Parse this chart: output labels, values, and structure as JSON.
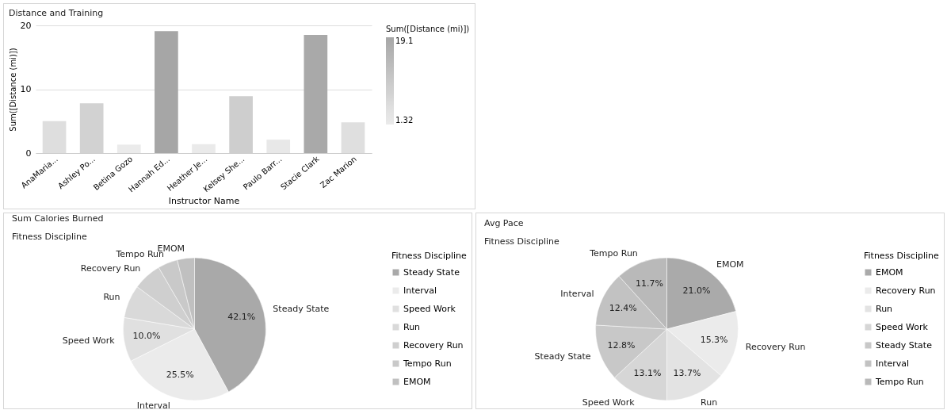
{
  "chart_data": [
    {
      "type": "bar",
      "title": "Distance and Training",
      "xlabel": "Instructor Name",
      "ylabel": "Sum([Distance (mi)])",
      "clabel": "Sum([Distance (mi)])",
      "categories": [
        "AnaMaria...",
        "Ashley Po...",
        "Betina Gozo",
        "Hannah Ed...",
        "Heather Je...",
        "Kelsey She...",
        "Paulo Barr...",
        "Stacie Clark",
        "Zac Marion"
      ],
      "values": [
        5.0,
        7.8,
        1.32,
        19.1,
        1.4,
        8.9,
        2.1,
        18.5,
        4.8
      ],
      "colors": [
        "#dedede",
        "#d2d2d2",
        "#ebebeb",
        "#a6a6a6",
        "#eaeaea",
        "#cecece",
        "#e8e8e8",
        "#a9a9a9",
        "#dfdfdf"
      ],
      "ylim": [
        0,
        20
      ],
      "yticks": [
        0,
        10,
        20
      ],
      "grid": "y",
      "clim": [
        1.32,
        19.1
      ],
      "cticks": [
        1.32,
        19.1
      ]
    },
    {
      "type": "pie",
      "title": "Sum Calories Burned",
      "subtitle": "Fitness Discipline",
      "legend_title": "Fitness Discipline",
      "legend": "right",
      "categories": [
        "Steady State",
        "Interval",
        "Speed Work",
        "Run",
        "Recovery  Run",
        "Tempo Run",
        "EMOM"
      ],
      "values": [
        42.1,
        25.5,
        10.0,
        7.5,
        6.5,
        4.5,
        3.9
      ],
      "value_labels": [
        "42.1%",
        "25.5%",
        "10.0%",
        null,
        null,
        null,
        null
      ],
      "colors": [
        "#a9a9a9",
        "#ebebeb",
        "#e0e0e0",
        "#d9d9d9",
        "#cfcfcf",
        "#c9c9c9",
        "#c0c0c0"
      ]
    },
    {
      "type": "pie",
      "title": "Avg Pace",
      "subtitle": "Fitness Discipline",
      "legend_title": "Fitness Discipline",
      "legend": "right",
      "categories": [
        "EMOM",
        "Recovery  Run",
        "Run",
        "Speed Work",
        "Steady State",
        "Interval",
        "Tempo  Run"
      ],
      "values": [
        21.0,
        15.3,
        13.7,
        13.1,
        12.8,
        12.4,
        11.7
      ],
      "value_labels": [
        "21.0%",
        "15.3%",
        "13.7%",
        "13.1%",
        "12.8%",
        "12.4%",
        "11.7%"
      ],
      "colors": [
        "#aaaaaa",
        "#ebebeb",
        "#e3e3e3",
        "#d6d6d6",
        "#c8c8c8",
        "#c2c2c2",
        "#b9b9b9"
      ]
    }
  ]
}
